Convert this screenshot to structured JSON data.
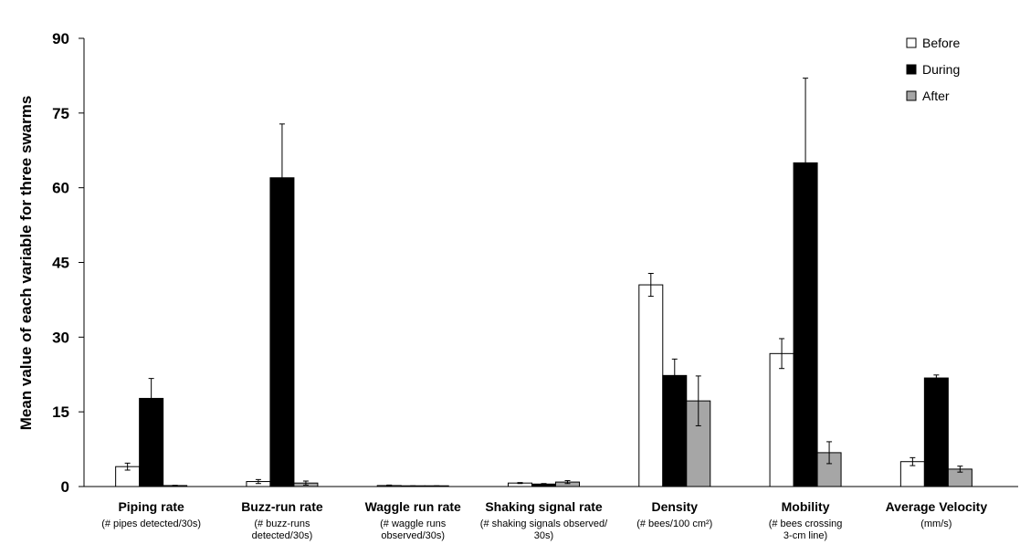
{
  "chart_data": {
    "type": "bar",
    "title": "",
    "ylabel": "Mean value of each variable for three swarms",
    "xlabel": "",
    "ylim": [
      0,
      90
    ],
    "yticks": [
      0,
      15,
      30,
      45,
      60,
      75,
      90
    ],
    "grid": false,
    "legend_position": "top-right",
    "categories": [
      {
        "name": "Piping rate",
        "sub": [
          "(# pipes detected/30s)"
        ]
      },
      {
        "name": "Buzz-run rate",
        "sub": [
          "(# buzz-runs",
          "detected/30s)"
        ]
      },
      {
        "name": "Waggle run rate",
        "sub": [
          "(# waggle runs",
          "observed/30s)"
        ]
      },
      {
        "name": "Shaking signal rate",
        "sub": [
          "(# shaking signals observed/",
          "30s)"
        ]
      },
      {
        "name": "Density",
        "sub": [
          "(# bees/100 cm²)"
        ]
      },
      {
        "name": "Mobility",
        "sub": [
          "(# bees crossing",
          "3-cm line)"
        ]
      },
      {
        "name": "Average Velocity",
        "sub": [
          "(mm/s)"
        ]
      }
    ],
    "series": [
      {
        "name": "Before",
        "color": "#ffffff",
        "values": [
          4.0,
          1.0,
          0.2,
          0.7,
          40.5,
          26.7,
          5.0
        ],
        "errors": [
          0.7,
          0.4,
          0.1,
          0.1,
          2.3,
          3.0,
          0.8
        ]
      },
      {
        "name": "During",
        "color": "#000000",
        "values": [
          17.7,
          62.0,
          0.1,
          0.5,
          22.3,
          65.0,
          21.8
        ],
        "errors": [
          4.0,
          10.8,
          0.05,
          0.1,
          3.3,
          17.0,
          0.6
        ]
      },
      {
        "name": "After",
        "color": "#a6a6a6",
        "values": [
          0.2,
          0.7,
          0.1,
          0.9,
          17.2,
          6.8,
          3.5
        ],
        "errors": [
          0.05,
          0.4,
          0.05,
          0.3,
          5.0,
          2.2,
          0.6
        ]
      }
    ]
  }
}
